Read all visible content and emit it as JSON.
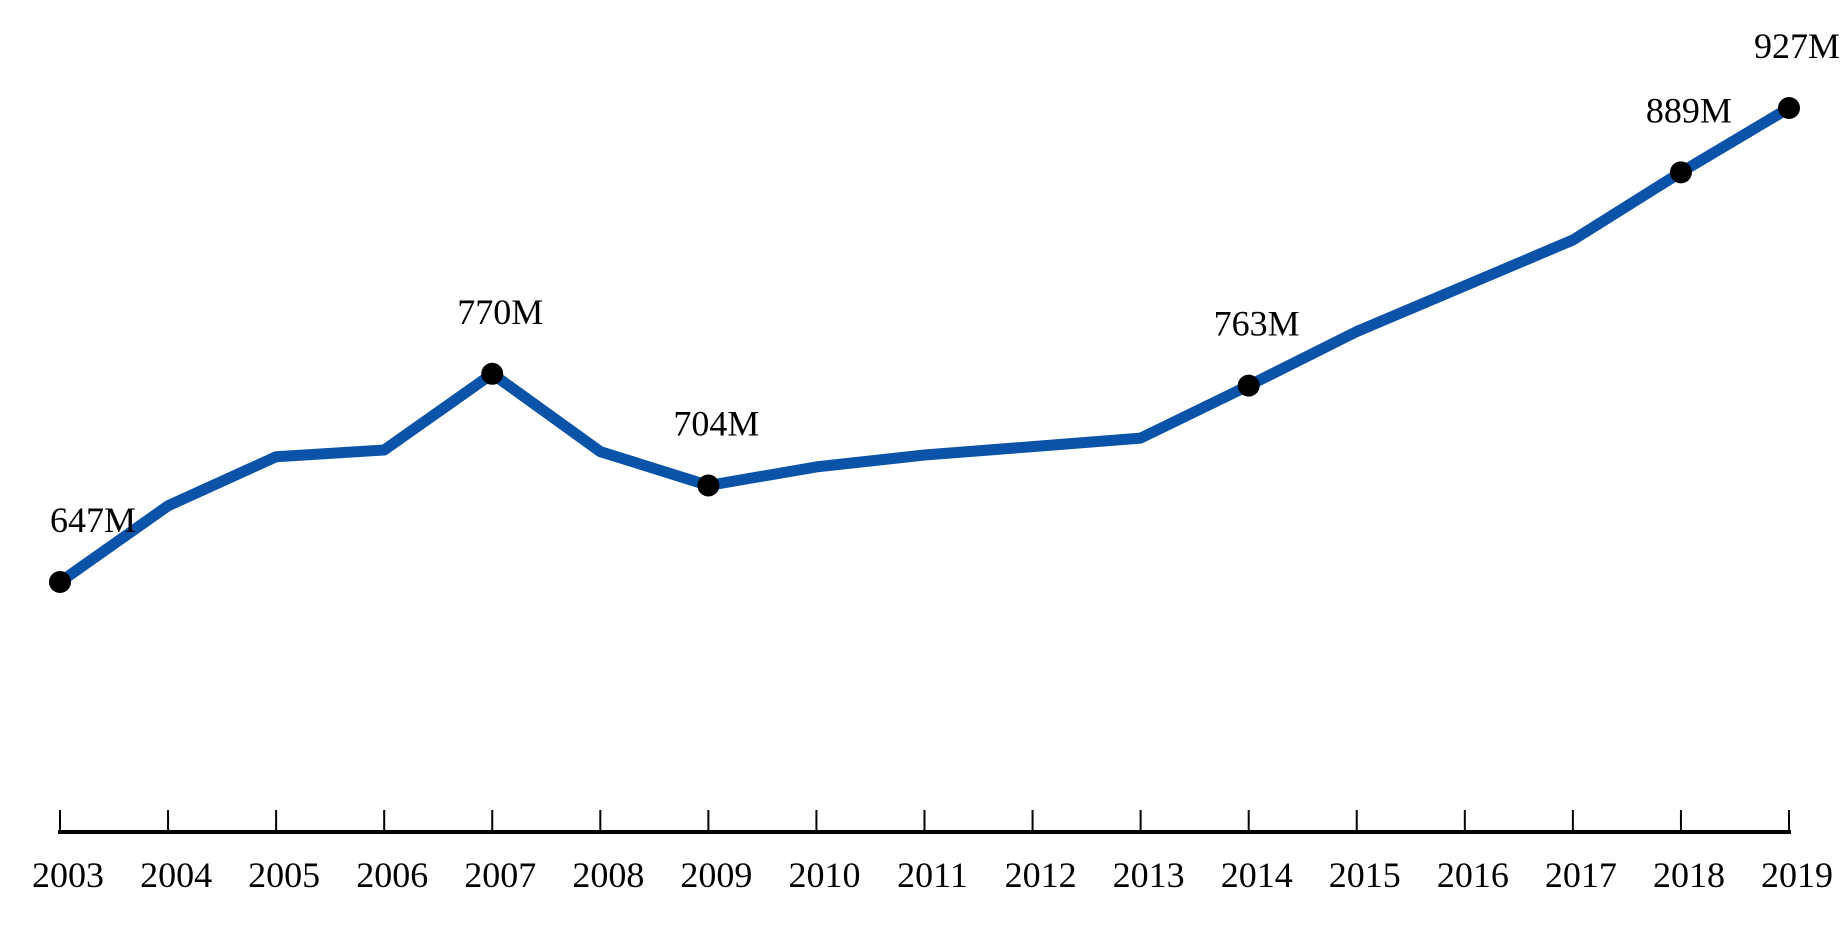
{
  "chart_data": {
    "type": "line",
    "title": "",
    "xlabel": "",
    "ylabel": "",
    "ylim": [
      450,
      950
    ],
    "grid": false,
    "categories": [
      "2003",
      "2004",
      "2005",
      "2006",
      "2007",
      "2008",
      "2009",
      "2010",
      "2011",
      "2012",
      "2013",
      "2014",
      "2015",
      "2016",
      "2017",
      "2018",
      "2019"
    ],
    "series": [
      {
        "values": [
          647,
          692,
          721,
          725,
          770,
          724,
          704,
          715,
          722,
          727,
          732,
          763,
          795,
          822,
          849,
          889,
          927
        ],
        "color": "#0a53a8"
      }
    ],
    "data_labels": [
      {
        "index": 0,
        "text": "647M"
      },
      {
        "index": 4,
        "text": "770M"
      },
      {
        "index": 6,
        "text": "704M"
      },
      {
        "index": 11,
        "text": "763M"
      },
      {
        "index": 15,
        "text": "889M"
      },
      {
        "index": 16,
        "text": "927M"
      }
    ],
    "marker_color": "#000000",
    "axis_color": "#000000"
  }
}
